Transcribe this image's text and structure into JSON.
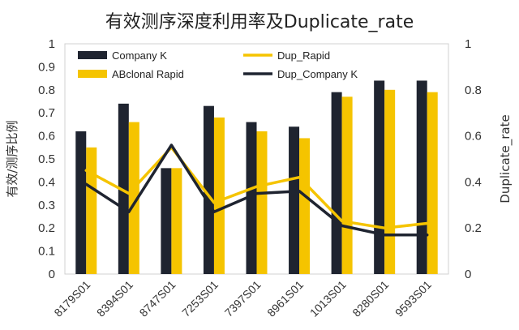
{
  "chart_data": {
    "type": "bar",
    "title": "有效测序深度利用率及Duplicate_rate",
    "ylabel": "有效/测序比例",
    "y2label": "Duplicate_rate",
    "ylim": [
      0,
      1
    ],
    "y2lim": [
      0,
      1
    ],
    "yticks": [
      "0",
      "0.1",
      "0.2",
      "0.3",
      "0.4",
      "0.5",
      "0.6",
      "0.7",
      "0.8",
      "0.9",
      "1"
    ],
    "y2ticks": [
      "0",
      "0.2",
      "0.4",
      "0.6",
      "0.8",
      "1"
    ],
    "categories": [
      "8179S01",
      "8394S01",
      "8747S01",
      "7253S01",
      "7397S01",
      "8961S01",
      "1013S01",
      "8280S01",
      "9593S01"
    ],
    "bar_series": [
      {
        "name": "Company K",
        "color": "#1f2430",
        "values": [
          0.62,
          0.74,
          0.46,
          0.73,
          0.66,
          0.64,
          0.79,
          0.84,
          0.84
        ]
      },
      {
        "name": "ABclonal Rapid",
        "color": "#f5c400",
        "values": [
          0.55,
          0.66,
          0.46,
          0.68,
          0.62,
          0.59,
          0.77,
          0.8,
          0.79
        ]
      }
    ],
    "line_series": [
      {
        "name": "Dup_Rapid",
        "color": "#f5c400",
        "axis": "right",
        "values": [
          0.45,
          0.35,
          0.55,
          0.31,
          0.38,
          0.42,
          0.23,
          0.2,
          0.22
        ]
      },
      {
        "name": "Dup_Company K",
        "color": "#1f2430",
        "axis": "right",
        "values": [
          0.39,
          0.27,
          0.56,
          0.27,
          0.35,
          0.36,
          0.21,
          0.17,
          0.17
        ]
      }
    ],
    "legend": {
      "placement": "top",
      "items": [
        {
          "label": "Company K",
          "kind": "bar",
          "color": "#1f2430"
        },
        {
          "label": "Dup_Rapid",
          "kind": "line",
          "color": "#f5c400"
        },
        {
          "label": "ABclonal Rapid",
          "kind": "bar",
          "color": "#f5c400"
        },
        {
          "label": "Dup_Company K",
          "kind": "line",
          "color": "#1f2430"
        }
      ]
    },
    "grid": false
  }
}
